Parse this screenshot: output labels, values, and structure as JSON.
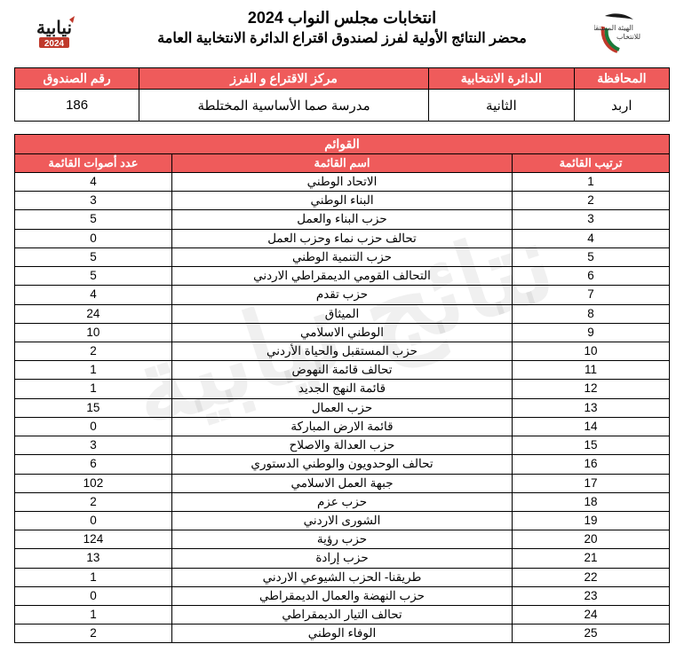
{
  "watermark": "نتائج نيابية",
  "header": {
    "title_main": "انتخابات مجلس النواب 2024",
    "title_sub": "محضر النتائج الأولية لفرز لصندوق اقتراع الدائرة الانتخابية العامة",
    "logo_left_label": "2024",
    "logo_right_line1": "الهيئة المستقلة",
    "logo_right_line2": "للانتخاب"
  },
  "info": {
    "labels": {
      "governorate": "المحافظة",
      "district": "الدائرة الانتخابية",
      "center": "مركز الاقتراع و الفرز",
      "box": "رقم الصندوق"
    },
    "values": {
      "governorate": "اربد",
      "district": "الثانية",
      "center": "مدرسة صما الأساسية المختلطة",
      "box": "186"
    }
  },
  "lists": {
    "super_header": "القوائم",
    "columns": {
      "rank": "ترتيب القائمة",
      "name": "اسم القائمة",
      "votes": "عدد أصوات القائمة"
    },
    "rows": [
      {
        "rank": "1",
        "name": "الاتحاد الوطني",
        "votes": "4"
      },
      {
        "rank": "2",
        "name": "البناء الوطني",
        "votes": "3"
      },
      {
        "rank": "3",
        "name": "حزب البناء والعمل",
        "votes": "5"
      },
      {
        "rank": "4",
        "name": "تحالف حزب نماء وحزب العمل",
        "votes": "0"
      },
      {
        "rank": "5",
        "name": "حزب التنمية الوطني",
        "votes": "5"
      },
      {
        "rank": "6",
        "name": "التحالف القومي الديمقراطي الاردني",
        "votes": "5"
      },
      {
        "rank": "7",
        "name": "حزب تقدم",
        "votes": "4"
      },
      {
        "rank": "8",
        "name": "الميثاق",
        "votes": "24"
      },
      {
        "rank": "9",
        "name": "الوطني الاسلامي",
        "votes": "10"
      },
      {
        "rank": "10",
        "name": "حزب المستقبل والحياة الأردني",
        "votes": "2"
      },
      {
        "rank": "11",
        "name": "تحالف قائمة النهوض",
        "votes": "1"
      },
      {
        "rank": "12",
        "name": "قائمة النهج الجديد",
        "votes": "1"
      },
      {
        "rank": "13",
        "name": "حزب العمال",
        "votes": "15"
      },
      {
        "rank": "14",
        "name": "قائمة الارض المباركة",
        "votes": "0"
      },
      {
        "rank": "15",
        "name": "حزب العدالة والاصلاح",
        "votes": "3"
      },
      {
        "rank": "16",
        "name": "تحالف الوحدويون والوطني الدستوري",
        "votes": "6"
      },
      {
        "rank": "17",
        "name": "جبهة العمل الاسلامي",
        "votes": "102"
      },
      {
        "rank": "18",
        "name": "حزب عزم",
        "votes": "2"
      },
      {
        "rank": "19",
        "name": "الشورى الاردني",
        "votes": "0"
      },
      {
        "rank": "20",
        "name": "حزب رؤية",
        "votes": "124"
      },
      {
        "rank": "21",
        "name": "حزب إرادة",
        "votes": "13"
      },
      {
        "rank": "22",
        "name": "طريقنا- الحزب الشيوعي الاردني",
        "votes": "1"
      },
      {
        "rank": "23",
        "name": "حزب النهضة والعمال الديمقراطي",
        "votes": "0"
      },
      {
        "rank": "24",
        "name": "تحالف التيار الديمقراطي",
        "votes": "1"
      },
      {
        "rank": "25",
        "name": "الوفاء الوطني",
        "votes": "2"
      }
    ]
  },
  "colors": {
    "header_bg": "#ef5b5b",
    "header_fg": "#ffffff",
    "border": "#000000",
    "watermark": "rgba(0,0,0,0.06)"
  }
}
